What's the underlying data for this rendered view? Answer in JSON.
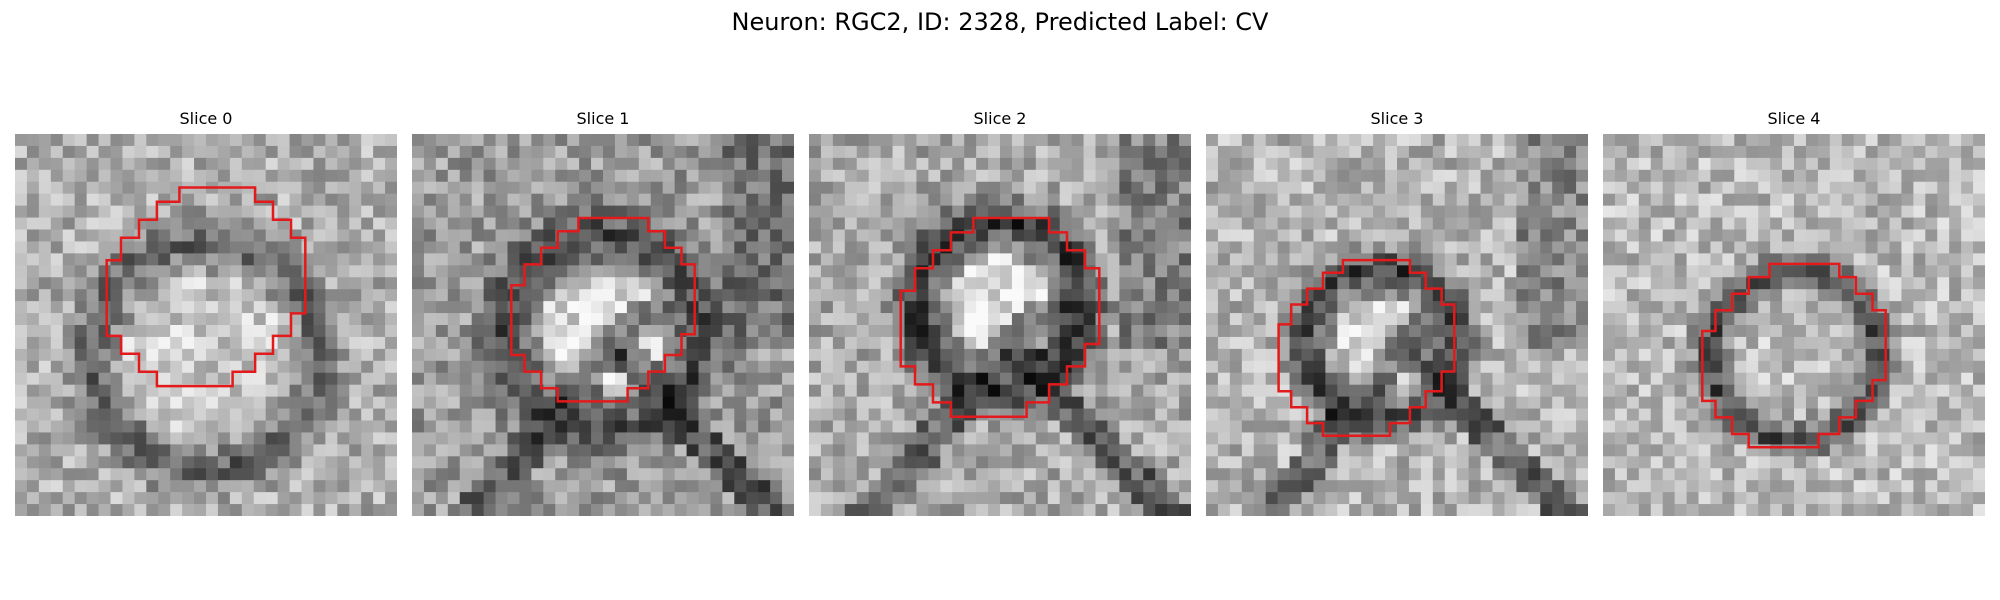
{
  "figure": {
    "title": "Neuron: RGC2, ID: 2328, Predicted Label: CV"
  },
  "panels": [
    {
      "title": "Slice 0",
      "image": "grayscale-microscopy-slice",
      "overlay": "red-octagon-contour",
      "overlay_color": "#e31a1c"
    },
    {
      "title": "Slice 1",
      "image": "grayscale-microscopy-slice",
      "overlay": "red-octagon-contour",
      "overlay_color": "#e31a1c"
    },
    {
      "title": "Slice 2",
      "image": "grayscale-microscopy-slice",
      "overlay": "red-octagon-contour",
      "overlay_color": "#e31a1c"
    },
    {
      "title": "Slice 3",
      "image": "grayscale-microscopy-slice",
      "overlay": "red-octagon-contour",
      "overlay_color": "#e31a1c"
    },
    {
      "title": "Slice 4",
      "image": "grayscale-microscopy-slice",
      "overlay": "red-octagon-contour",
      "overlay_color": "#e31a1c"
    }
  ]
}
